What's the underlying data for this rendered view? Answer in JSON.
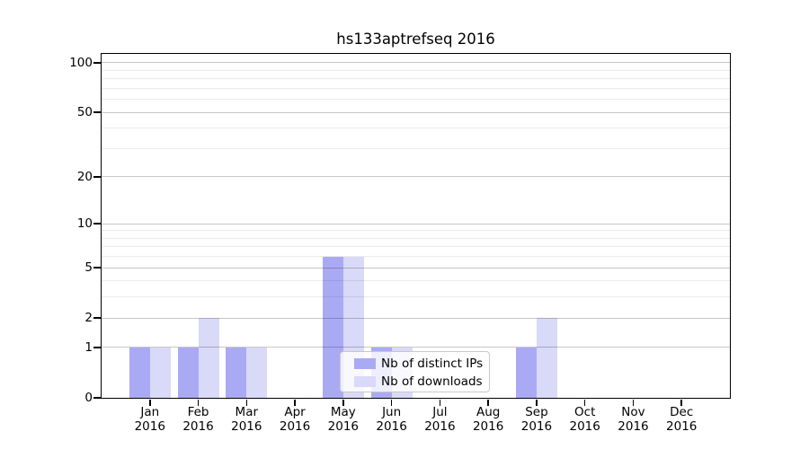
{
  "chart_data": {
    "type": "bar",
    "title": "hs133aptrefseq 2016",
    "categories": [
      {
        "month": "Jan",
        "year": "2016"
      },
      {
        "month": "Feb",
        "year": "2016"
      },
      {
        "month": "Mar",
        "year": "2016"
      },
      {
        "month": "Apr",
        "year": "2016"
      },
      {
        "month": "May",
        "year": "2016"
      },
      {
        "month": "Jun",
        "year": "2016"
      },
      {
        "month": "Jul",
        "year": "2016"
      },
      {
        "month": "Aug",
        "year": "2016"
      },
      {
        "month": "Sep",
        "year": "2016"
      },
      {
        "month": "Oct",
        "year": "2016"
      },
      {
        "month": "Nov",
        "year": "2016"
      },
      {
        "month": "Dec",
        "year": "2016"
      }
    ],
    "series": [
      {
        "name": "Nb of distinct IPs",
        "color": "#aaaaf4",
        "values": [
          1,
          1,
          1,
          0,
          6,
          1,
          0,
          0,
          1,
          0,
          0,
          0
        ]
      },
      {
        "name": "Nb of downloads",
        "color": "#d9d9f8",
        "values": [
          1,
          2,
          1,
          0,
          6,
          1,
          0,
          0,
          2,
          0,
          0,
          0
        ]
      }
    ],
    "xlabel": "",
    "ylabel": "",
    "y_axis": {
      "scale": "log(1+x)",
      "ticks": [
        0,
        1,
        2,
        5,
        10,
        20,
        50,
        100
      ],
      "minor_gridlines": [
        3,
        4,
        6,
        7,
        8,
        9,
        30,
        40,
        60,
        70,
        80,
        90
      ],
      "ylim": [
        0,
        113
      ]
    },
    "grid": "both",
    "legend": {
      "position": "lower-center-inside",
      "entries": [
        "Nb of distinct IPs",
        "Nb of downloads"
      ]
    },
    "colors": {
      "distinct_ips_bar": "#aaaaf4",
      "downloads_bar": "#d9d9f8",
      "major_gridline": "#c8c8c8",
      "minor_gridline": "#ebebeb",
      "axis": "#000000"
    }
  }
}
